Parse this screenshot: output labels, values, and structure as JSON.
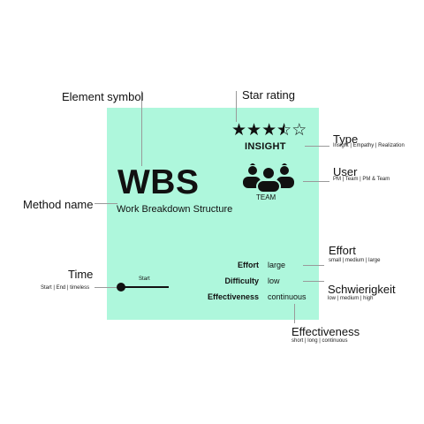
{
  "card": {
    "background": "#aef7dc",
    "abbreviation": "WBS",
    "method_name": "Work Breakdown Structure",
    "star_rating": 3.5,
    "star_max": 5,
    "type": "INSIGHT",
    "user": "TEAM",
    "time_marker": "Start",
    "attributes": [
      {
        "label": "Effort",
        "value": "large"
      },
      {
        "label": "Difficulty",
        "value": "low"
      },
      {
        "label": "Effectiveness",
        "value": "continuous"
      }
    ]
  },
  "callouts": {
    "element_symbol": {
      "title": "Element symbol"
    },
    "star_rating": {
      "title": "Star rating"
    },
    "type": {
      "title": "Type",
      "options": "Insight | Empathy | Realization"
    },
    "user": {
      "title": "User",
      "options": "PM | Team | PM & Team"
    },
    "method_name": {
      "title": "Method name"
    },
    "effort": {
      "title": "Effort",
      "options": "small | medium | large"
    },
    "time": {
      "title": "Time",
      "options": "Start | End | timeless"
    },
    "difficulty": {
      "title": "Schwierigkeit",
      "options": "low | medium | high"
    },
    "effectiveness": {
      "title": "Effectiveness",
      "options": "short | long | continuous"
    }
  }
}
